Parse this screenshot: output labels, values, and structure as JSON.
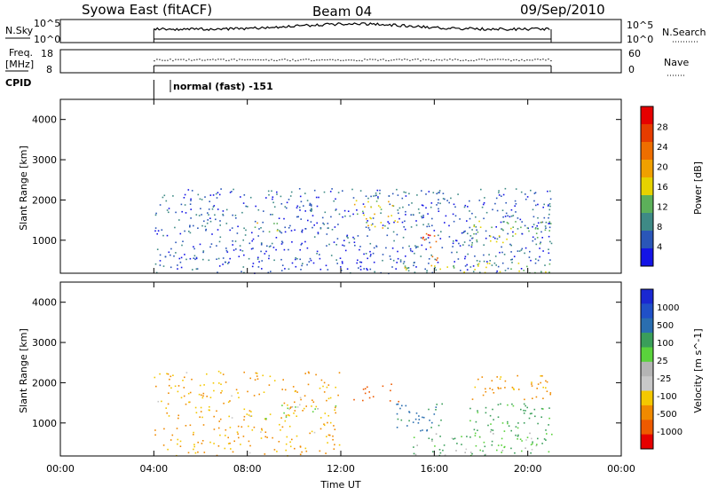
{
  "header": {
    "title": "Syowa East (fitACF)",
    "beam": "Beam 04",
    "date": "09/Sep/2010"
  },
  "strip_nsky": {
    "label": "N.Sky",
    "ticks": [
      "10^5",
      "10^0"
    ],
    "right_ticks": [
      "10^5",
      "10^0"
    ],
    "right_label": "N.Search"
  },
  "strip_freq": {
    "label_top": "Freq.",
    "label_bottom": "[MHz]",
    "ticks": [
      "18",
      "8"
    ],
    "right_ticks": [
      "60",
      "0"
    ],
    "right_label": "Nave"
  },
  "cpid": {
    "label": "CPID",
    "value": "normal (fast) -151"
  },
  "x_axis": {
    "label": "Time UT",
    "ticks": [
      "00:00",
      "04:00",
      "08:00",
      "12:00",
      "16:00",
      "20:00",
      "00:00"
    ]
  },
  "colors": {
    "power": [
      "#1414e6",
      "#2a56b8",
      "#3e8a86",
      "#5cb05a",
      "#e6d200",
      "#f0a000",
      "#ee6e00",
      "#e63c00",
      "#e60000"
    ],
    "velocity": [
      "#e60000",
      "#ee5a00",
      "#f08a00",
      "#f4c800",
      "#c8c8c8",
      "#b4b4b4",
      "#5ad23c",
      "#3a9e5a",
      "#2a6eb0",
      "#2050c8",
      "#1a28d2"
    ]
  },
  "chart_data": [
    {
      "type": "heatmap",
      "title": "",
      "xlabel": "Time UT",
      "ylabel": "Slant Range [km]",
      "colorbar_label": "Power [dB]",
      "colorbar_ticks": [
        "28",
        "24",
        "20",
        "16",
        "12",
        "8",
        "4"
      ],
      "colorbar_range": [
        0,
        30
      ],
      "x_range_hours": [
        0,
        24
      ],
      "y_ticks": [
        "1000",
        "2000",
        "3000",
        "4000"
      ],
      "y_range_km": [
        180,
        4500
      ],
      "data_hours": [
        4.0,
        21.0
      ],
      "regions": [
        {
          "t0": 4.0,
          "t1": 21.0,
          "r0": 180,
          "r1": 300,
          "level": 6
        },
        {
          "t0": 4.0,
          "t1": 21.0,
          "r0": 300,
          "r1": 2300,
          "level": 5
        },
        {
          "t0": 8.3,
          "t1": 9.4,
          "r0": 1200,
          "r1": 1500,
          "level": 14
        },
        {
          "t0": 12.5,
          "t1": 14.5,
          "r0": 1300,
          "r1": 2000,
          "level": 16
        },
        {
          "t0": 15.3,
          "t1": 16.2,
          "r0": 800,
          "r1": 1200,
          "level": 24
        },
        {
          "t0": 15.8,
          "t1": 16.2,
          "r0": 400,
          "r1": 700,
          "level": 24
        },
        {
          "t0": 17.5,
          "t1": 21.0,
          "r0": 900,
          "r1": 1500,
          "level": 12
        },
        {
          "t0": 14.5,
          "t1": 21.0,
          "r0": 200,
          "r1": 450,
          "level": 14
        }
      ],
      "y_labels_text": "",
      "x_labels_text": ""
    },
    {
      "type": "heatmap",
      "title": "",
      "xlabel": "Time UT",
      "ylabel": "Slant Range [km]",
      "colorbar_label": "Velocity [m s^-1]",
      "colorbar_ticks": [
        "1000",
        "500",
        "100",
        "25",
        "-25",
        "-100",
        "-500",
        "-1000"
      ],
      "colorbar_range": [
        -1200,
        1200
      ],
      "x_range_hours": [
        0,
        24
      ],
      "y_ticks": [
        "1000",
        "2000",
        "3000",
        "4000"
      ],
      "y_range_km": [
        180,
        4500
      ],
      "data_hours": [
        4.0,
        21.0
      ],
      "regions": [
        {
          "t0": 4.0,
          "t1": 12.0,
          "r0": 180,
          "r1": 2300,
          "level": -120
        },
        {
          "t0": 8.0,
          "t1": 12.0,
          "r0": 1100,
          "r1": 1500,
          "level": 0
        },
        {
          "t0": 12.5,
          "t1": 14.5,
          "r0": 1500,
          "r1": 2000,
          "level": -400
        },
        {
          "t0": 14.3,
          "t1": 16.5,
          "r0": 800,
          "r1": 1500,
          "level": 300
        },
        {
          "t0": 15.0,
          "t1": 21.0,
          "r0": 200,
          "r1": 800,
          "level": 80
        },
        {
          "t0": 17.5,
          "t1": 21.0,
          "r0": 800,
          "r1": 1500,
          "level": 150
        },
        {
          "t0": 17.5,
          "t1": 21.0,
          "r0": 1600,
          "r1": 2200,
          "level": -150
        }
      ],
      "y_labels_text": "",
      "x_labels_text": ""
    }
  ]
}
